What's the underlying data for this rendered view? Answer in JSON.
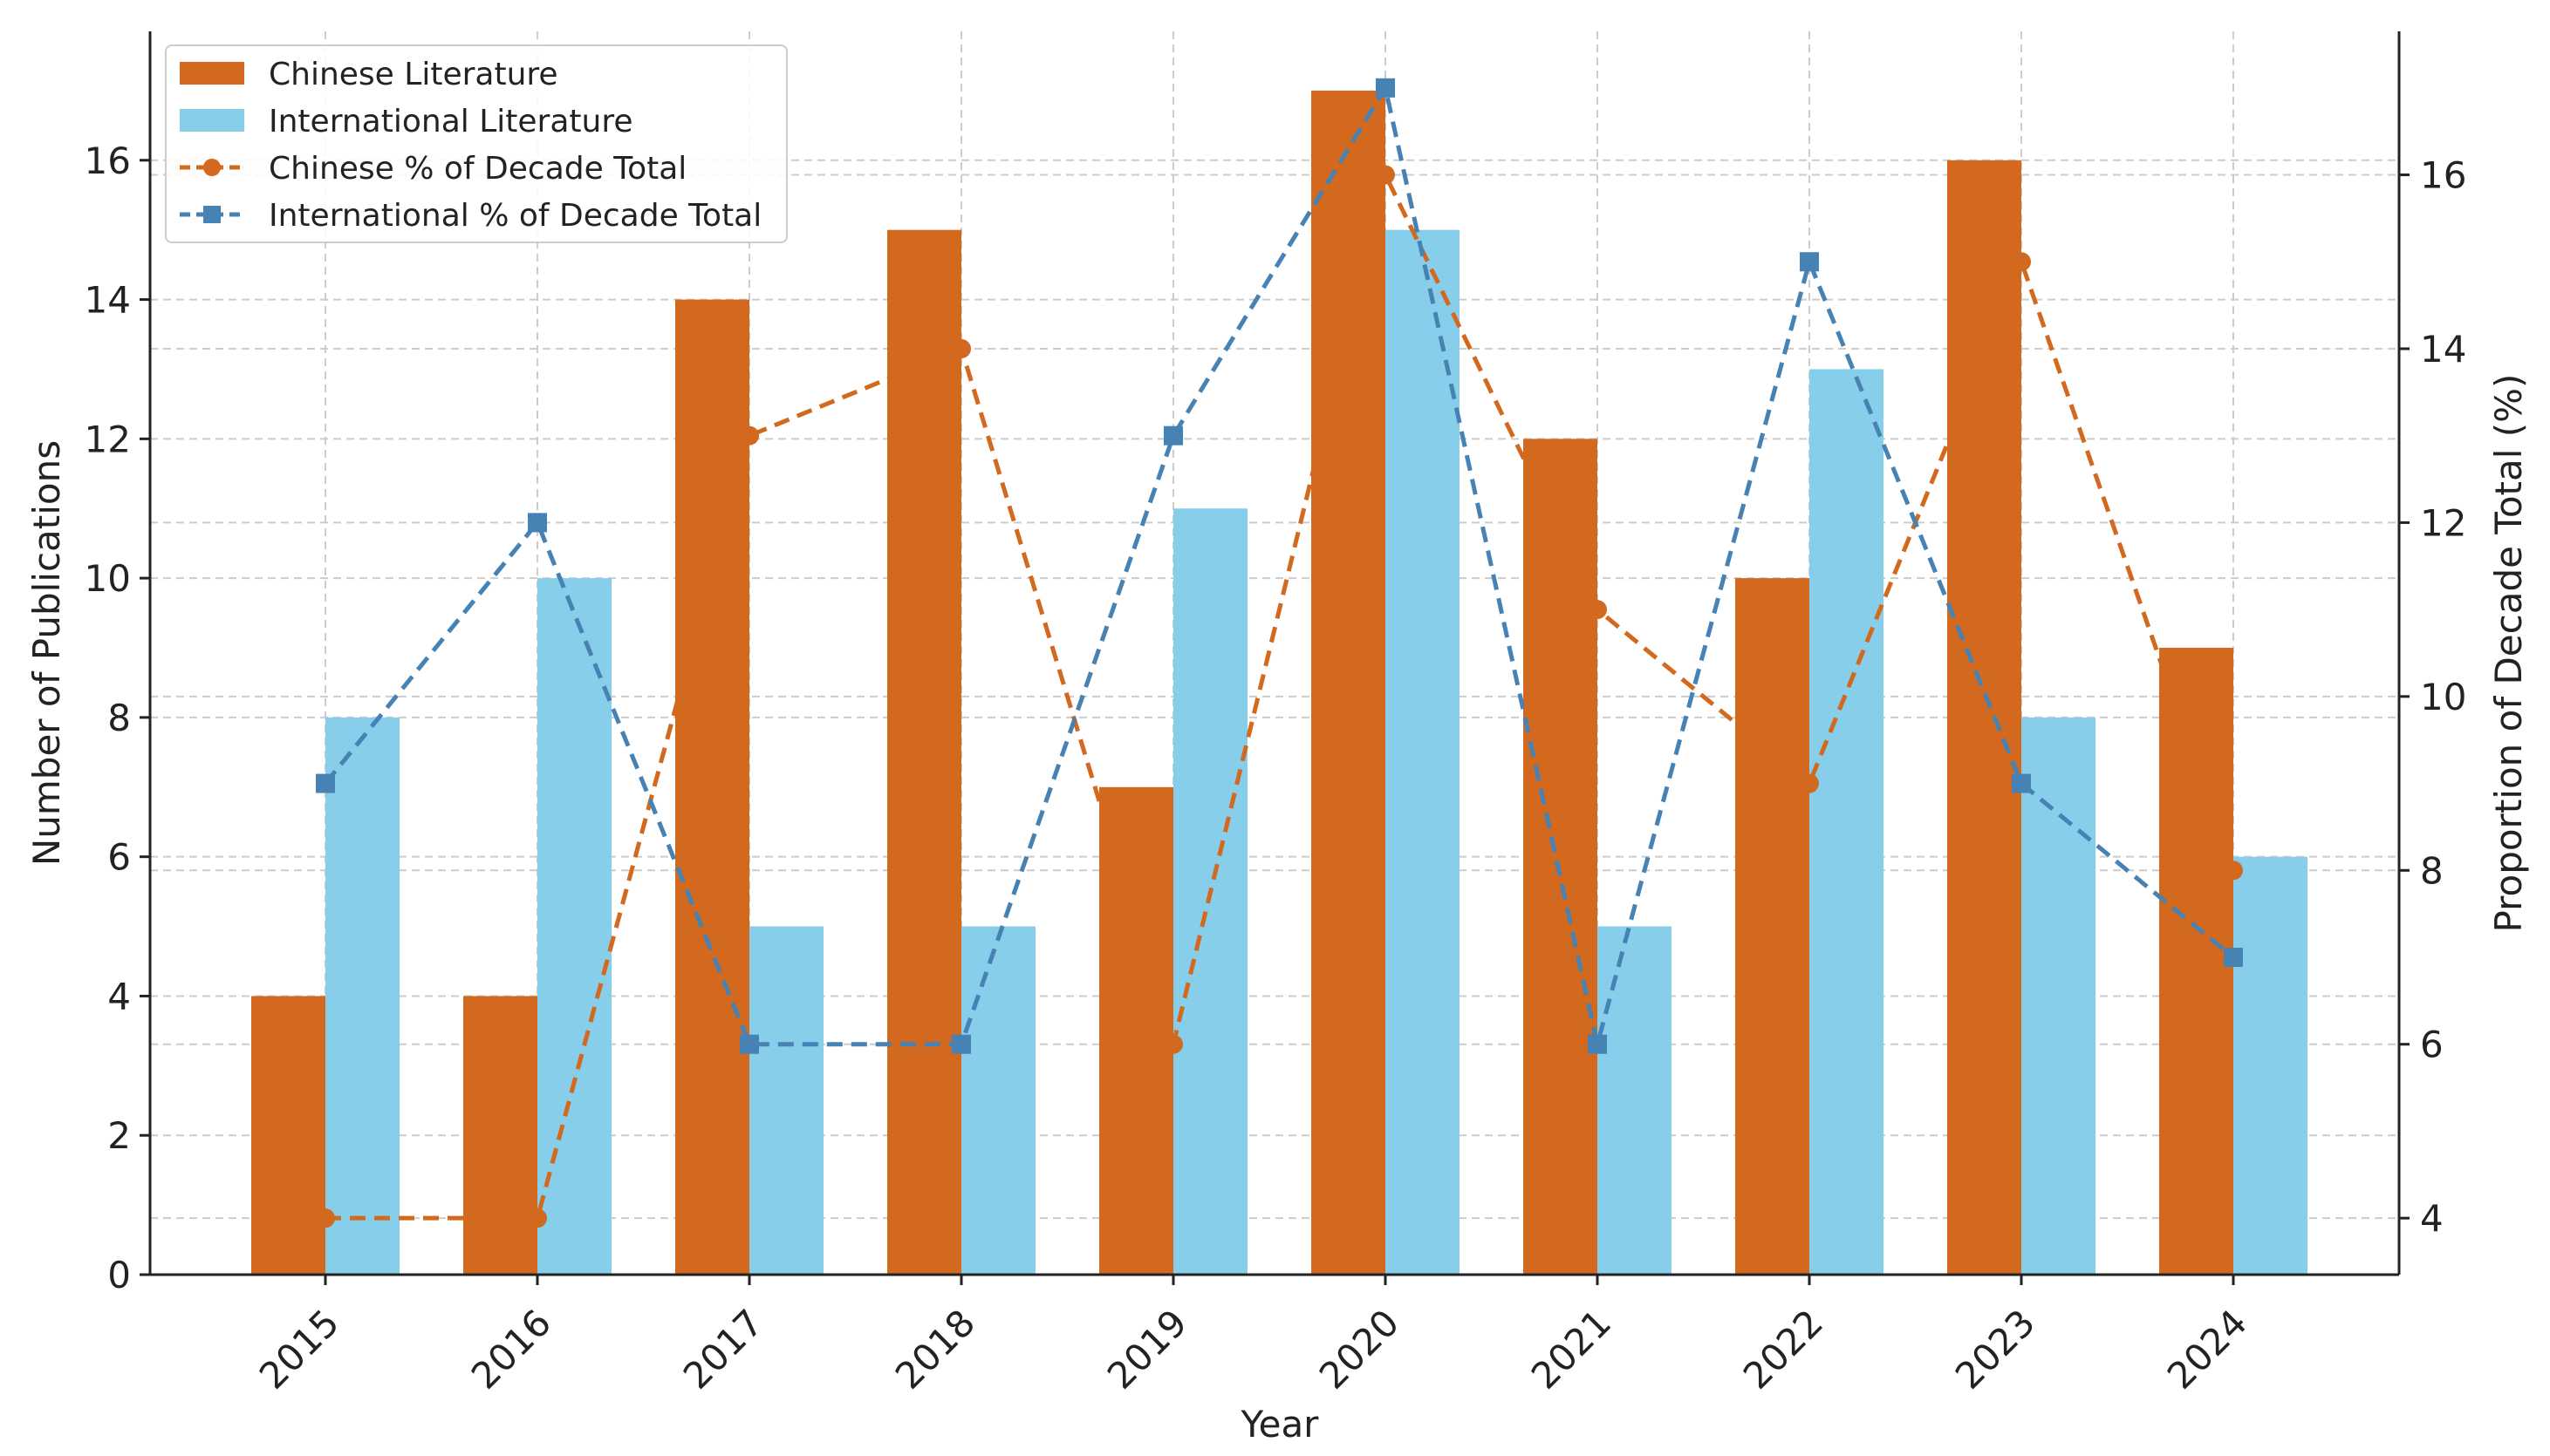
{
  "chart_data": {
    "type": "bar+line",
    "categories": [
      "2015",
      "2016",
      "2017",
      "2018",
      "2019",
      "2020",
      "2021",
      "2022",
      "2023",
      "2024"
    ],
    "bar_series": [
      {
        "name": "Chinese Literature",
        "color": "#D2691E",
        "values": [
          4,
          4,
          14,
          15,
          7,
          17,
          12,
          10,
          16,
          9
        ]
      },
      {
        "name": "International Literature",
        "color": "#87CEEB",
        "values": [
          8,
          10,
          5,
          5,
          11,
          15,
          5,
          13,
          8,
          6
        ]
      }
    ],
    "line_series": [
      {
        "name": "Chinese % of Decade Total",
        "color": "#D2691E",
        "marker": "circle",
        "values": [
          4,
          4,
          13,
          14,
          6,
          16,
          11,
          9,
          15,
          8
        ]
      },
      {
        "name": "International % of Decade Total",
        "color": "#4682B4",
        "marker": "square",
        "values": [
          9,
          12,
          6,
          6,
          13,
          17,
          6,
          15,
          9,
          7
        ]
      }
    ],
    "xlabel": "Year",
    "ylabel": "Number of Publications",
    "y2label": "Proportion of Decade Total (%)",
    "ylim": [
      0,
      17.85
    ],
    "y2lim": [
      3.35,
      17.65
    ],
    "yticks": [
      0,
      2,
      4,
      6,
      8,
      10,
      12,
      14,
      16
    ],
    "y2ticks": [
      4,
      6,
      8,
      10,
      12,
      14,
      16
    ],
    "grid": true,
    "legend_position": "top-left"
  }
}
